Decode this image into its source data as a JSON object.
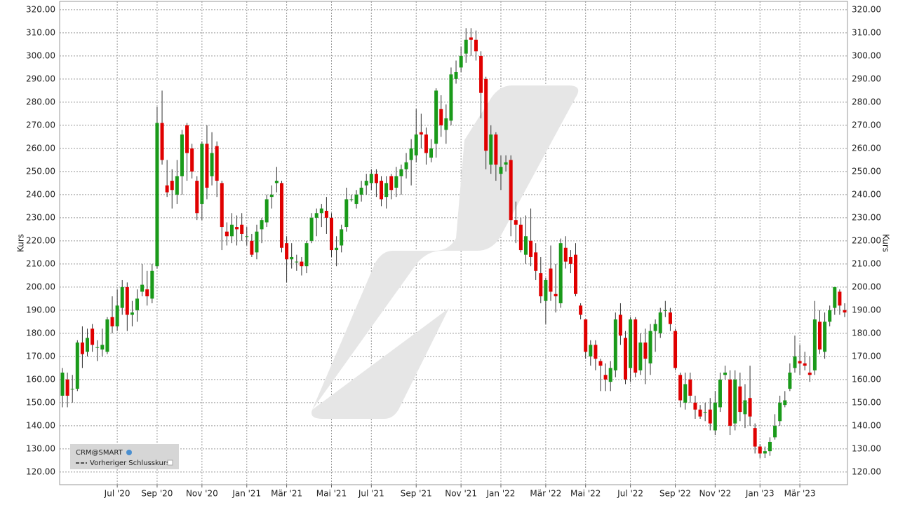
{
  "chart_data": {
    "type": "candlestick",
    "y_label": "Kurs",
    "legend": [
      "CRM@SMART",
      "Vorheriger Schlusskurs"
    ],
    "legend_position": "lower left",
    "up_color": "#1a9a1a",
    "down_color": "#e00000",
    "grid": true,
    "ylim": [
      114.5,
      323.6
    ],
    "yticks": [
      {
        "value": 120,
        "label": "120.00"
      },
      {
        "value": 130,
        "label": "130.00"
      },
      {
        "value": 140,
        "label": "140.00"
      },
      {
        "value": 150,
        "label": "150.00"
      },
      {
        "value": 160,
        "label": "160.00"
      },
      {
        "value": 170,
        "label": "170.00"
      },
      {
        "value": 180,
        "label": "180.00"
      },
      {
        "value": 190,
        "label": "190.00"
      },
      {
        "value": 200,
        "label": "200.00"
      },
      {
        "value": 210,
        "label": "210.00"
      },
      {
        "value": 220,
        "label": "220.00"
      },
      {
        "value": 230,
        "label": "230.00"
      },
      {
        "value": 240,
        "label": "240.00"
      },
      {
        "value": 250,
        "label": "250.00"
      },
      {
        "value": 260,
        "label": "260.00"
      },
      {
        "value": 270,
        "label": "270.00"
      },
      {
        "value": 280,
        "label": "280.00"
      },
      {
        "value": 290,
        "label": "290.00"
      },
      {
        "value": 300,
        "label": "300.00"
      },
      {
        "value": 310,
        "label": "310.00"
      },
      {
        "value": 320,
        "label": "320.00"
      }
    ],
    "categories": [
      null,
      null,
      null,
      null,
      null,
      null,
      null,
      null,
      null,
      null,
      null,
      "Jul '20",
      null,
      null,
      null,
      null,
      null,
      null,
      null,
      "Sep '20",
      null,
      null,
      null,
      null,
      null,
      null,
      null,
      null,
      "Nov '20",
      null,
      null,
      null,
      null,
      null,
      null,
      null,
      null,
      "Jan '21",
      null,
      null,
      null,
      null,
      null,
      null,
      null,
      "Mär '21",
      null,
      null,
      null,
      null,
      null,
      null,
      null,
      null,
      "Mai '21",
      null,
      null,
      null,
      null,
      null,
      null,
      null,
      "Jul '21",
      null,
      null,
      null,
      null,
      null,
      null,
      null,
      null,
      "Sep '21",
      null,
      null,
      null,
      null,
      null,
      null,
      null,
      null,
      "Nov '21",
      null,
      null,
      null,
      null,
      null,
      null,
      null,
      "Jan '22",
      null,
      null,
      null,
      null,
      null,
      null,
      null,
      null,
      "Mär '22",
      null,
      null,
      null,
      null,
      null,
      null,
      null,
      "Mai '22",
      null,
      null,
      null,
      null,
      null,
      null,
      null,
      null,
      "Jul '22",
      null,
      null,
      null,
      null,
      null,
      null,
      null,
      null,
      "Sep '22",
      null,
      null,
      null,
      null,
      null,
      null,
      null,
      "Nov '22",
      null,
      null,
      null,
      null,
      null,
      null,
      null,
      null,
      "Jan '23",
      null,
      null,
      null,
      null,
      null,
      null,
      null,
      "Mär '23",
      null,
      null,
      null,
      null,
      null,
      null,
      null,
      null,
      null
    ],
    "open": [
      153,
      160,
      156,
      156,
      176,
      172,
      182,
      174,
      173,
      172,
      187,
      183,
      191,
      200,
      188,
      190,
      198,
      199,
      195,
      209,
      271,
      244,
      246,
      240,
      248,
      270,
      260,
      246,
      236,
      262,
      248,
      261,
      245,
      224,
      222,
      226,
      227,
      222,
      220,
      215,
      225,
      228,
      239,
      245,
      245,
      219,
      212,
      211,
      211,
      209,
      220,
      230,
      232,
      233,
      230,
      216,
      218,
      226,
      238,
      236,
      240,
      244,
      245,
      249,
      246,
      239,
      248,
      243,
      248,
      251,
      255,
      257,
      267,
      266,
      256,
      262,
      277,
      268,
      272,
      290,
      295,
      301,
      308,
      307,
      300,
      290,
      253,
      266,
      249,
      253,
      255,
      229,
      227,
      214,
      220,
      215,
      206,
      194,
      208,
      197,
      193,
      217,
      213,
      214,
      192,
      186,
      170,
      175,
      168,
      162,
      159,
      164,
      188,
      178,
      165,
      186,
      164,
      176,
      167,
      181,
      180,
      190,
      189,
      181,
      162,
      150,
      160,
      150,
      147,
      146,
      147,
      138,
      148,
      162,
      160,
      141,
      157,
      145,
      152,
      139,
      131,
      128,
      129,
      135,
      142,
      149,
      156,
      165,
      168,
      167,
      163,
      164,
      185,
      172,
      185,
      191,
      198,
      190
    ],
    "high": [
      165,
      163,
      162,
      177,
      183,
      182,
      184,
      177,
      182,
      187,
      196,
      199,
      203,
      202,
      194,
      199,
      210,
      207,
      210,
      278,
      285,
      255,
      251,
      255,
      268,
      271,
      262,
      248,
      263,
      270,
      267,
      263,
      246,
      228,
      232,
      231,
      232,
      226,
      223,
      227,
      230,
      240,
      244,
      252,
      246,
      222,
      219,
      214,
      213,
      220,
      232,
      234,
      236,
      239,
      232,
      222,
      227,
      243,
      240,
      242,
      246,
      249,
      251,
      251,
      248,
      248,
      249,
      252,
      253,
      258,
      264,
      277,
      275,
      269,
      264,
      286,
      283,
      279,
      295,
      298,
      304,
      312,
      312,
      311,
      302,
      291,
      270,
      267,
      257,
      257,
      257,
      237,
      230,
      231,
      234,
      219,
      213,
      204,
      218,
      210,
      221,
      222,
      216,
      219,
      193,
      186,
      177,
      177,
      169,
      167,
      168,
      189,
      193,
      181,
      187,
      187,
      180,
      182,
      184,
      186,
      191,
      194,
      191,
      182,
      163,
      163,
      163,
      153,
      149,
      150,
      152,
      155,
      163,
      166,
      164,
      164,
      163,
      158,
      166,
      141,
      132,
      131,
      135,
      145,
      153,
      155,
      167,
      179,
      175,
      172,
      170,
      194,
      190,
      189,
      192,
      200,
      199,
      193
    ],
    "low": [
      148,
      148,
      150,
      155,
      165,
      170,
      172,
      168,
      170,
      171,
      180,
      181,
      188,
      181,
      183,
      185,
      196,
      192,
      193,
      208,
      253,
      239,
      234,
      236,
      240,
      246,
      247,
      229,
      229,
      238,
      244,
      239,
      216,
      218,
      219,
      218,
      220,
      218,
      213,
      212,
      219,
      226,
      234,
      241,
      215,
      202,
      208,
      207,
      205,
      206,
      219,
      222,
      226,
      223,
      213,
      209,
      215,
      224,
      237,
      234,
      237,
      240,
      242,
      239,
      235,
      234,
      238,
      239,
      240,
      247,
      244,
      254,
      260,
      253,
      254,
      256,
      265,
      262,
      270,
      288,
      293,
      297,
      300,
      298,
      273,
      251,
      249,
      246,
      242,
      250,
      222,
      219,
      215,
      210,
      209,
      203,
      193,
      184,
      194,
      189,
      191,
      208,
      206,
      196,
      186,
      169,
      166,
      164,
      155,
      155,
      155,
      161,
      175,
      158,
      159,
      161,
      162,
      158,
      162,
      172,
      178,
      187,
      181,
      164,
      148,
      147,
      150,
      143,
      143,
      142,
      138,
      136,
      146,
      160,
      136,
      138,
      142,
      139,
      140,
      128,
      126,
      126,
      127,
      134,
      140,
      148,
      155,
      163,
      162,
      164,
      159,
      162,
      171,
      169,
      183,
      188,
      188,
      187
    ],
    "close": [
      163,
      153,
      156,
      176,
      171,
      178,
      175,
      174,
      175,
      186,
      183,
      192,
      200,
      188,
      189,
      195,
      201,
      196,
      207,
      271,
      255,
      241,
      242,
      248,
      266,
      258,
      250,
      232,
      262,
      243,
      258,
      246,
      226,
      222,
      227,
      225,
      223,
      222,
      214,
      224,
      229,
      238,
      240,
      246,
      217,
      212,
      213,
      211,
      209,
      219,
      230,
      232,
      234,
      230,
      216,
      217,
      225,
      238,
      238,
      240,
      243,
      246,
      249,
      245,
      238,
      245,
      242,
      248,
      251,
      254,
      260,
      266,
      266,
      258,
      260,
      285,
      270,
      273,
      292,
      293,
      300,
      307,
      307,
      302,
      284,
      259,
      266,
      253,
      252,
      254,
      229,
      227,
      216,
      222,
      213,
      207,
      196,
      203,
      198,
      196,
      219,
      211,
      210,
      197,
      188,
      172,
      175,
      169,
      166,
      160,
      165,
      186,
      179,
      160,
      186,
      163,
      176,
      169,
      181,
      184,
      189,
      190,
      184,
      165,
      151,
      158,
      153,
      147,
      144,
      146,
      141,
      150,
      160,
      163,
      140,
      160,
      146,
      151,
      144,
      131,
      128,
      129,
      133,
      140,
      150,
      151,
      163,
      170,
      167,
      166,
      162,
      186,
      173,
      185,
      190,
      200,
      192,
      189
    ]
  }
}
